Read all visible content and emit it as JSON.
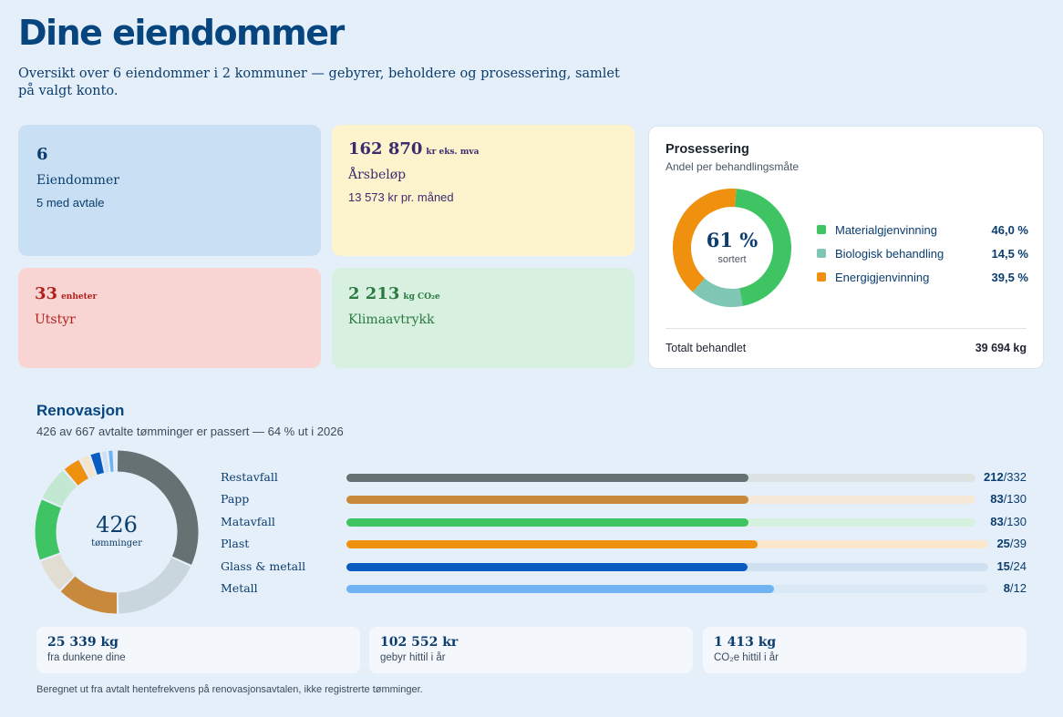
{
  "header": {
    "title": "Dine eiendommer",
    "subtitle": "Oversikt over 6 eiendommer i 2 kommuner — gebyrer, beholdere og prosessering, samlet på valgt konto."
  },
  "cards": {
    "properties": {
      "value": "6",
      "label": "Eiendommer",
      "sub": "5 med avtale"
    },
    "annual": {
      "value": "162 870",
      "unit": "kr eks. mva",
      "label": "Årsbeløp",
      "sub": "13 573 kr pr. måned"
    },
    "equipment": {
      "value": "33",
      "unit": "enheter",
      "label": "Utstyr"
    },
    "climate": {
      "value": "2 213",
      "unit": "kg CO₂e",
      "label": "Klimaavtrykk"
    }
  },
  "processing": {
    "title": "Prosessering",
    "subtitle": "Andel per behandlingsmåte",
    "center_value": "61 %",
    "center_label": "sortert",
    "items": [
      {
        "name": "Materialgjenvinning",
        "value_label": "46,0 %",
        "value": 46.0,
        "color": "#3ec463"
      },
      {
        "name": "Biologisk behandling",
        "value_label": "14,5 %",
        "value": 14.5,
        "color": "#7fc6b5"
      },
      {
        "name": "Energigjenvinning",
        "value_label": "39,5 %",
        "value": 39.5,
        "color": "#f0900f"
      }
    ],
    "total_label": "Totalt behandlet",
    "total_value": "39 694 kg"
  },
  "renovation": {
    "title": "Renovasjon",
    "subtitle": "426 av 667 avtalte tømminger er passert — 64 % ut i 2026",
    "center_value": "426",
    "center_label": "tømminger",
    "donut_segments": [
      {
        "value": 212,
        "color": "#657172"
      },
      {
        "value": 120,
        "color": "#c9d6de"
      },
      {
        "value": 83,
        "color": "#c8893c"
      },
      {
        "value": 47,
        "color": "#e2ddd3"
      },
      {
        "value": 83,
        "color": "#3ec463"
      },
      {
        "value": 47,
        "color": "#c2e8d2"
      },
      {
        "value": 25,
        "color": "#f0900f"
      },
      {
        "value": 14,
        "color": "#f3e4cf"
      },
      {
        "value": 15,
        "color": "#0a5cc0"
      },
      {
        "value": 9,
        "color": "#cfe0f3"
      },
      {
        "value": 8,
        "color": "#6fb3f2"
      },
      {
        "value": 4,
        "color": "#dbe9f7"
      }
    ],
    "rows": [
      {
        "name": "Restavfall",
        "done": "212",
        "total": "/332",
        "fill": 212,
        "max": 332,
        "color": "#657172",
        "track": "#dde2e3"
      },
      {
        "name": "Papp",
        "done": "83",
        "total": "/130",
        "fill": 83,
        "max": 130,
        "color": "#c8893c",
        "track": "#f6e8d8"
      },
      {
        "name": "Matavfall",
        "done": "83",
        "total": "/130",
        "fill": 83,
        "max": 130,
        "color": "#3ec463",
        "track": "#d6f1de"
      },
      {
        "name": "Plast",
        "done": "25",
        "total": "/39",
        "fill": 25,
        "max": 39,
        "color": "#f0900f",
        "track": "#fbe7cd"
      },
      {
        "name": "Glass & metall",
        "done": "15",
        "total": "/24",
        "fill": 15,
        "max": 24,
        "color": "#0a5cc0",
        "track": "#cfe0f3"
      },
      {
        "name": "Metall",
        "done": "8",
        "total": "/12",
        "fill": 8,
        "max": 12,
        "color": "#6fb3f2",
        "track": "#dbe9f7"
      }
    ],
    "stats": [
      {
        "value": "25 339 kg",
        "label": "fra dunkene dine"
      },
      {
        "value": "102 552 kr",
        "label": "gebyr hittil i år"
      },
      {
        "value": "1 413 kg",
        "label": "CO₂e hittil i år"
      }
    ],
    "footnote": "Beregnet ut fra avtalt hentefrekvens på renovasjonsavtalen, ikke registrerte tømminger."
  }
}
